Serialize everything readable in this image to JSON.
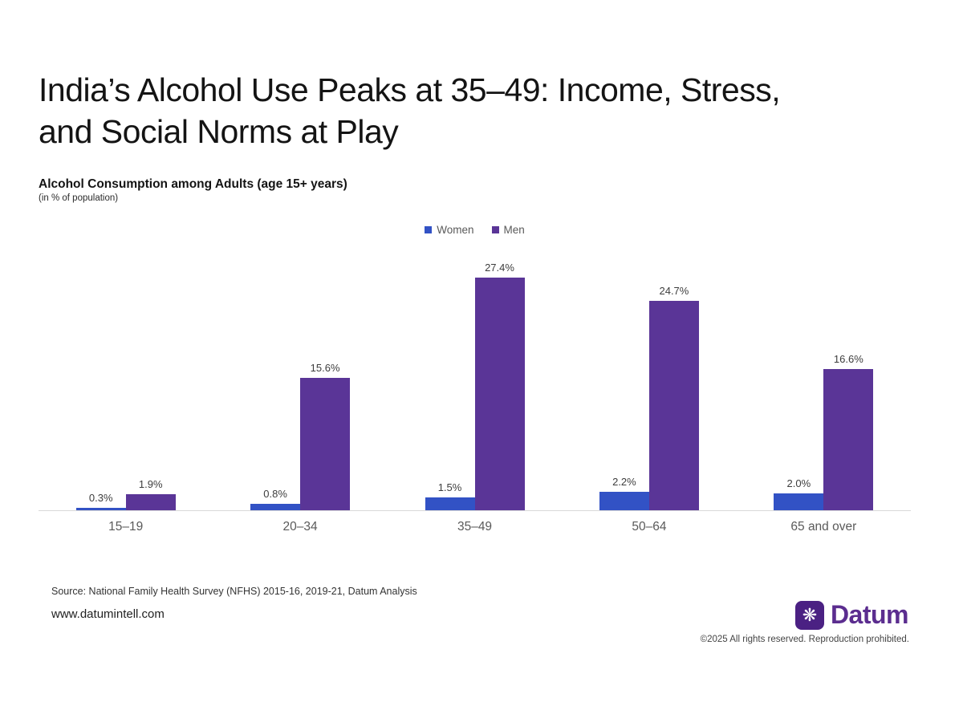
{
  "header": {
    "title": "India’s Alcohol Use Peaks at 35–49: Income, Stress, and Social Norms at Play",
    "subtitle": "Alcohol Consumption among Adults (age 15+ years)",
    "subtitle_note": "(in % of population)"
  },
  "chart_data": {
    "type": "bar",
    "title": "Alcohol Consumption among Adults (age 15+ years)",
    "unit": "% of population",
    "categories": [
      "15–19",
      "20–34",
      "35–49",
      "50–64",
      "65 and over"
    ],
    "series": [
      {
        "name": "Women",
        "color": "#3252C5",
        "values": [
          0.3,
          0.8,
          1.5,
          2.2,
          2.0
        ],
        "labels": [
          "0.3%",
          "0.8%",
          "1.5%",
          "2.2%",
          "2.0%"
        ]
      },
      {
        "name": "Men",
        "color": "#5A3597",
        "values": [
          1.9,
          15.6,
          27.4,
          24.7,
          16.6
        ],
        "labels": [
          "1.9%",
          "15.6%",
          "27.4%",
          "24.7%",
          "16.6%"
        ]
      }
    ],
    "xlabel": "",
    "ylabel": "",
    "ylim": [
      0,
      30
    ],
    "grid": false,
    "legend_position": "top-center",
    "axis_line_color": "#d9d9d9"
  },
  "footer": {
    "source": "Source: National Family Health Survey (NFHS) 2015-16, 2019-21, Datum Analysis",
    "website": "www.datumintell.com",
    "brand_name": "Datum",
    "brand_mark_icon": "snowflake-burst-icon",
    "brand_mark_glyph": "❋",
    "brand_mark_bg": "#4B2183",
    "brand_text_color": "#5B2D8F",
    "copyright": "©2025 All rights reserved. Reproduction prohibited."
  }
}
